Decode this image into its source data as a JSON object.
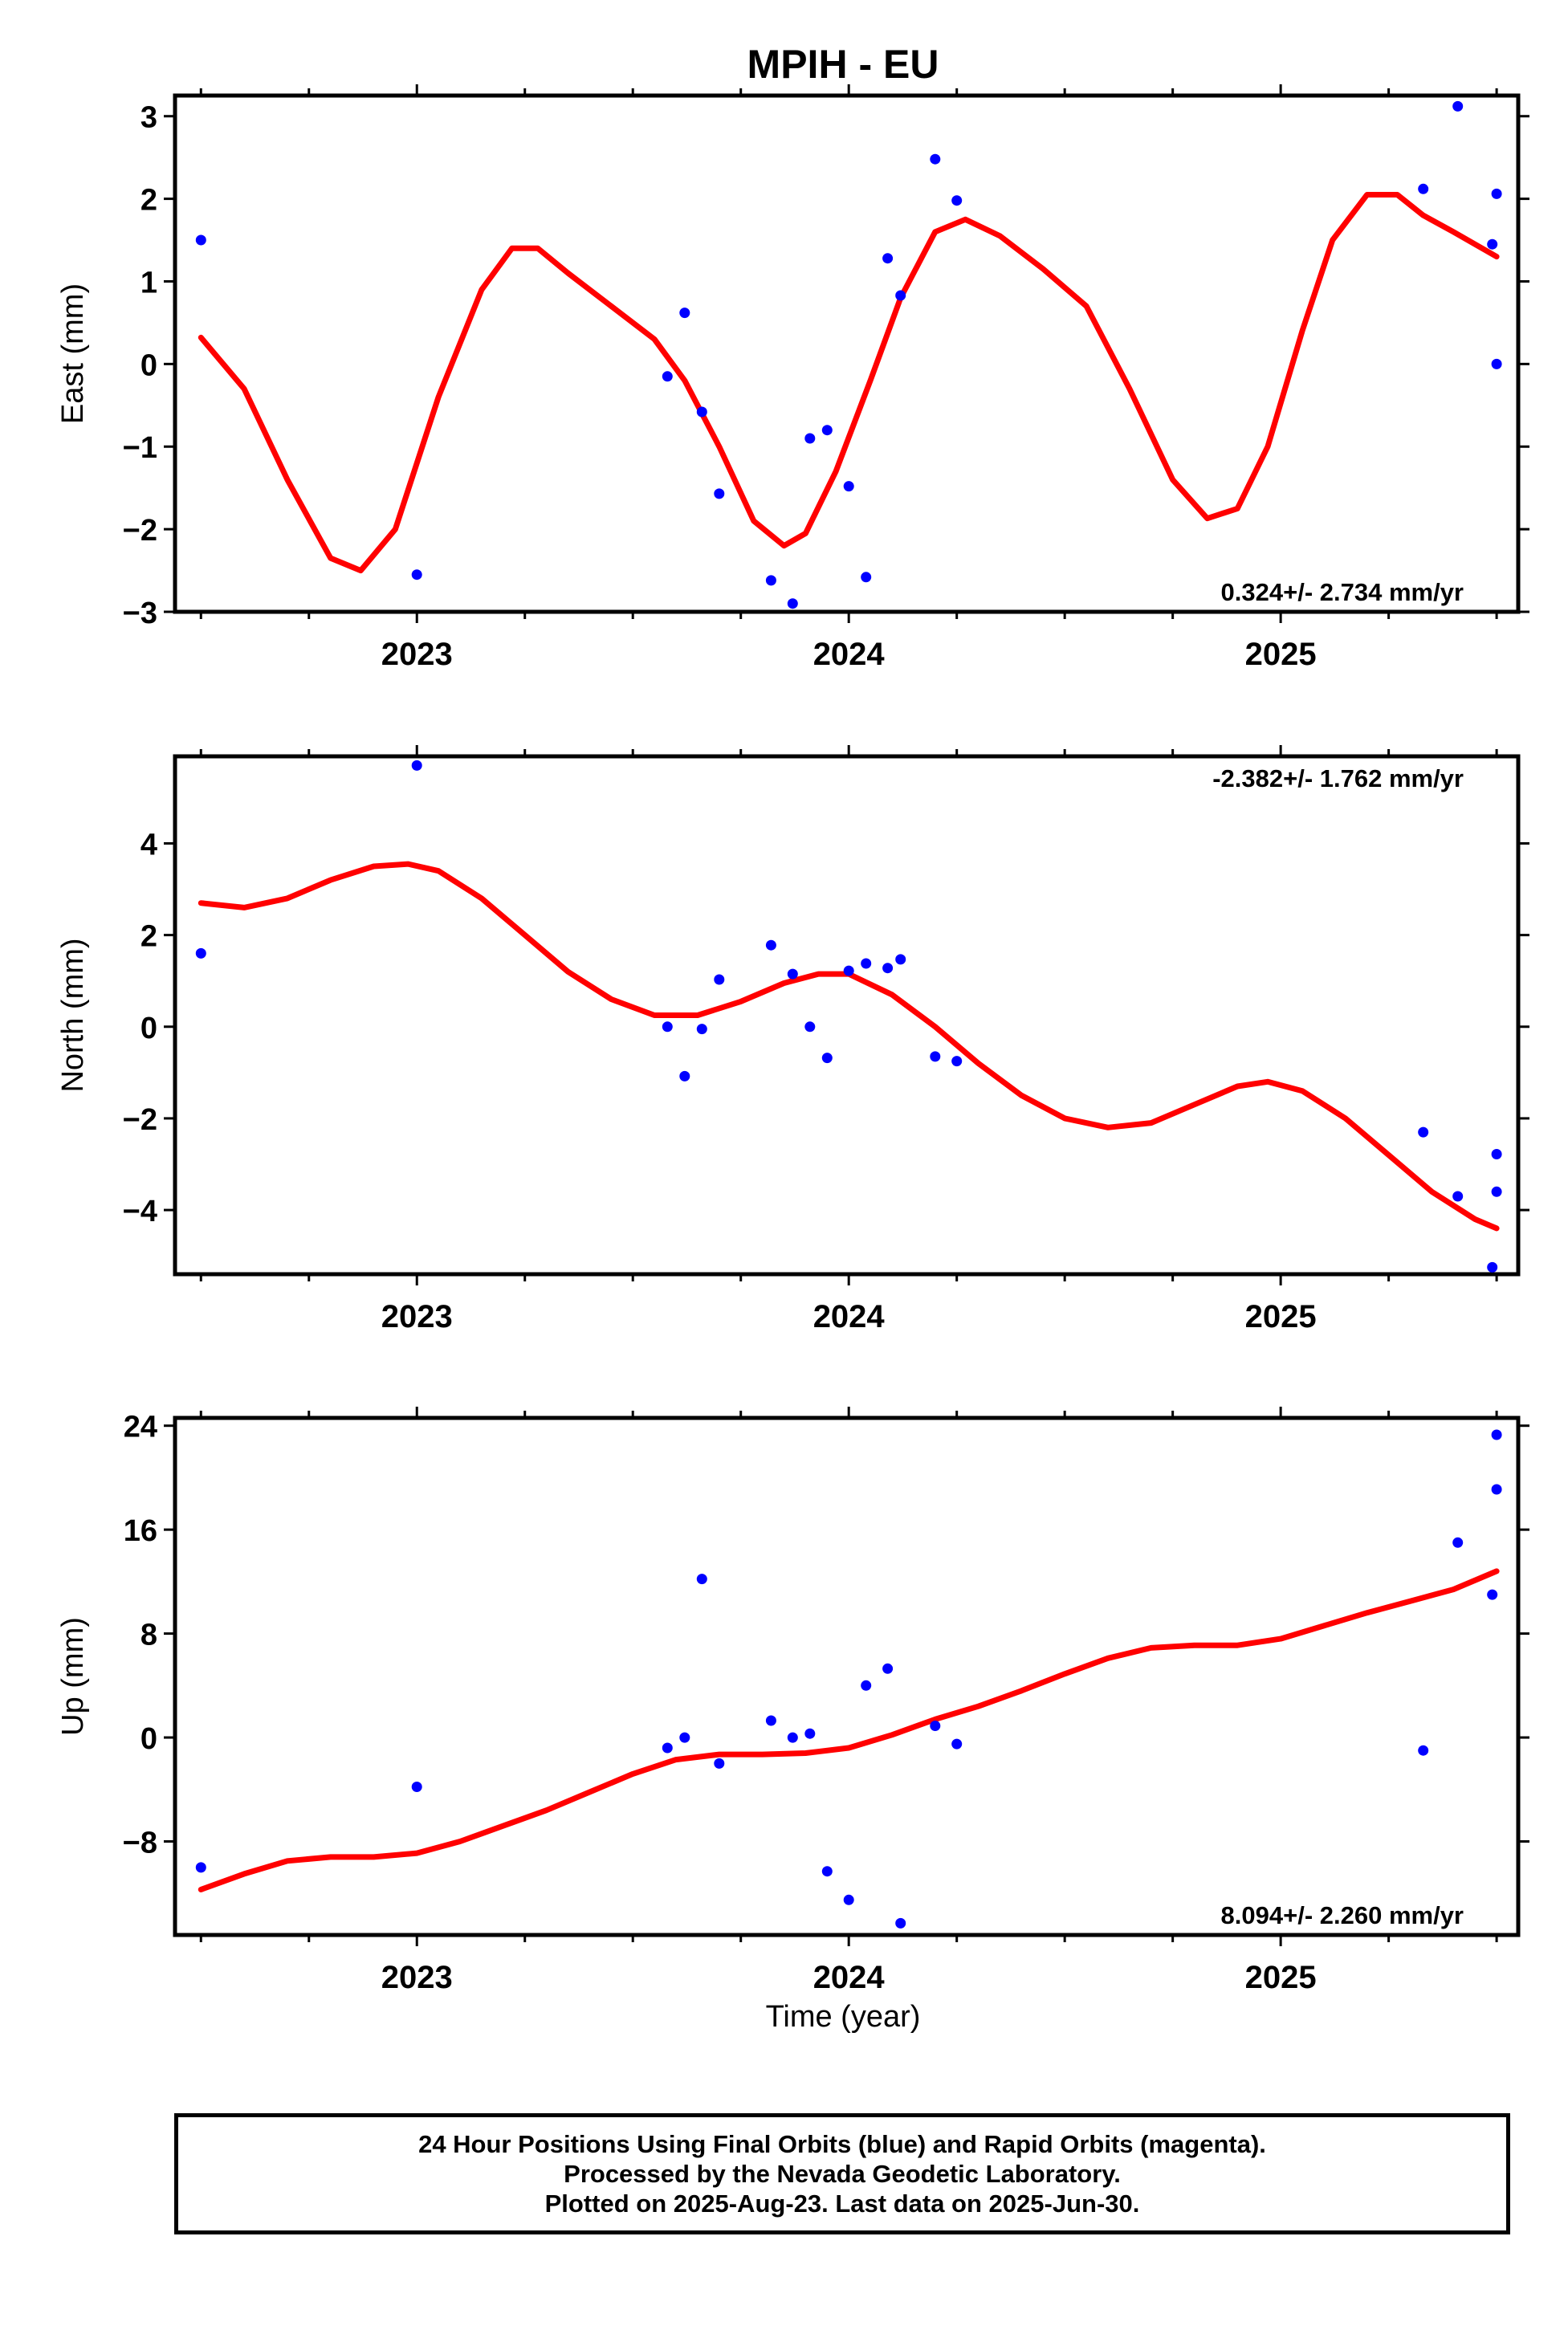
{
  "title": "MPIH - EU",
  "x_axis_label": "Time (year)",
  "colors": {
    "points": "#0000ff",
    "fit": "#ff0000",
    "frame": "#000000"
  },
  "chart_data": [
    {
      "type": "scatter",
      "ylabel": "East (mm)",
      "xlim": [
        2022.44,
        2025.55
      ],
      "ylim": [
        -3.0,
        3.25
      ],
      "yticks": [
        -3,
        -2,
        -1,
        0,
        1,
        2,
        3
      ],
      "ytick_labels": [
        "−3",
        "−2",
        "−1",
        "0",
        "1",
        "2",
        "3"
      ],
      "xticks": [
        2023,
        2024,
        2025
      ],
      "xtick_labels": [
        "2023",
        "2024",
        "2025"
      ],
      "rate_text": "0.324+/- 2.734 mm/yr",
      "rate_position": "bottom-right",
      "series": [
        {
          "kind": "points",
          "x": [
            2022.5,
            2023.0,
            2023.58,
            2023.62,
            2023.66,
            2023.7,
            2023.82,
            2023.87,
            2023.91,
            2023.95,
            2024.0,
            2024.04,
            2024.09,
            2024.12,
            2024.2,
            2024.25,
            2025.33,
            2025.41,
            2025.49,
            2025.5,
            2025.5
          ],
          "y": [
            1.5,
            -2.55,
            -0.15,
            0.62,
            -0.58,
            -1.57,
            -2.62,
            -2.9,
            -0.9,
            -0.8,
            -1.48,
            -2.58,
            1.28,
            0.83,
            2.48,
            1.98,
            2.12,
            3.12,
            1.45,
            0.0,
            2.06
          ]
        },
        {
          "kind": "fit",
          "x": [
            2022.5,
            2022.6,
            2022.7,
            2022.8,
            2022.87,
            2022.95,
            2023.05,
            2023.15,
            2023.22,
            2023.28,
            2023.35,
            2023.45,
            2023.55,
            2023.62,
            2023.7,
            2023.78,
            2023.85,
            2023.9,
            2023.97,
            2024.05,
            2024.12,
            2024.2,
            2024.27,
            2024.35,
            2024.45,
            2024.55,
            2024.65,
            2024.75,
            2024.83,
            2024.9,
            2024.97,
            2025.05,
            2025.12,
            2025.2,
            2025.27,
            2025.33,
            2025.4,
            2025.5
          ],
          "y": [
            0.32,
            -0.3,
            -1.4,
            -2.35,
            -2.5,
            -2.0,
            -0.4,
            0.9,
            1.4,
            1.4,
            1.1,
            0.7,
            0.3,
            -0.2,
            -1.0,
            -1.9,
            -2.2,
            -2.05,
            -1.3,
            -0.2,
            0.8,
            1.6,
            1.75,
            1.55,
            1.15,
            0.7,
            -0.3,
            -1.4,
            -1.87,
            -1.75,
            -1.0,
            0.4,
            1.5,
            2.05,
            2.05,
            1.8,
            1.6,
            1.3
          ]
        }
      ]
    },
    {
      "type": "scatter",
      "ylabel": "North (mm)",
      "xlim": [
        2022.44,
        2025.55
      ],
      "ylim": [
        -5.4,
        5.9
      ],
      "yticks": [
        -4,
        -2,
        0,
        2,
        4
      ],
      "ytick_labels": [
        "−4",
        "−2",
        "0",
        "2",
        "4"
      ],
      "xticks": [
        2023,
        2024,
        2025
      ],
      "xtick_labels": [
        "2023",
        "2024",
        "2025"
      ],
      "rate_text": "-2.382+/- 1.762 mm/yr",
      "rate_position": "top-right",
      "series": [
        {
          "kind": "points",
          "x": [
            2022.5,
            2023.0,
            2023.58,
            2023.62,
            2023.66,
            2023.7,
            2023.82,
            2023.87,
            2023.91,
            2023.95,
            2024.0,
            2024.04,
            2024.09,
            2024.12,
            2024.2,
            2024.25,
            2025.33,
            2025.41,
            2025.49,
            2025.5,
            2025.5
          ],
          "y": [
            1.6,
            5.7,
            0.0,
            -1.08,
            -0.05,
            1.03,
            1.78,
            1.15,
            0.0,
            -0.68,
            1.22,
            1.38,
            1.28,
            1.47,
            -0.65,
            -0.75,
            -2.3,
            -3.7,
            -5.25,
            -3.6,
            -2.78
          ]
        },
        {
          "kind": "fit",
          "x": [
            2022.5,
            2022.6,
            2022.7,
            2022.8,
            2022.9,
            2022.98,
            2023.05,
            2023.15,
            2023.25,
            2023.35,
            2023.45,
            2023.55,
            2023.65,
            2023.75,
            2023.85,
            2023.93,
            2024.0,
            2024.1,
            2024.2,
            2024.3,
            2024.4,
            2024.5,
            2024.6,
            2024.7,
            2024.8,
            2024.9,
            2024.97,
            2025.05,
            2025.15,
            2025.25,
            2025.35,
            2025.45,
            2025.5
          ],
          "y": [
            2.7,
            2.6,
            2.8,
            3.2,
            3.5,
            3.55,
            3.4,
            2.8,
            2.0,
            1.2,
            0.6,
            0.25,
            0.25,
            0.55,
            0.95,
            1.15,
            1.15,
            0.7,
            0.0,
            -0.8,
            -1.5,
            -2.0,
            -2.2,
            -2.1,
            -1.7,
            -1.3,
            -1.2,
            -1.4,
            -2.0,
            -2.8,
            -3.6,
            -4.2,
            -4.4
          ]
        }
      ]
    },
    {
      "type": "scatter",
      "ylabel": "Up (mm)",
      "xlim": [
        2022.44,
        2025.55
      ],
      "ylim": [
        -15.2,
        24.6
      ],
      "yticks": [
        -8,
        0,
        8,
        16,
        24
      ],
      "ytick_labels": [
        "−8",
        "0",
        "8",
        "16",
        "24"
      ],
      "xticks": [
        2023,
        2024,
        2025
      ],
      "xtick_labels": [
        "2023",
        "2024",
        "2025"
      ],
      "rate_text": "8.094+/- 2.260 mm/yr",
      "rate_position": "bottom-right",
      "series": [
        {
          "kind": "points",
          "x": [
            2022.5,
            2023.0,
            2023.58,
            2023.62,
            2023.66,
            2023.7,
            2023.82,
            2023.87,
            2023.91,
            2023.95,
            2024.0,
            2024.04,
            2024.09,
            2024.12,
            2024.2,
            2024.25,
            2025.33,
            2025.41,
            2025.49,
            2025.5,
            2025.5
          ],
          "y": [
            -10.0,
            -3.8,
            -0.8,
            0.0,
            12.2,
            -2.0,
            1.3,
            0.0,
            0.3,
            -10.3,
            -12.5,
            4.0,
            5.3,
            -14.3,
            0.9,
            -0.5,
            -1.0,
            15.0,
            11.0,
            19.1,
            23.3
          ]
        },
        {
          "kind": "fit",
          "x": [
            2022.5,
            2022.6,
            2022.7,
            2022.8,
            2022.9,
            2023.0,
            2023.1,
            2023.2,
            2023.3,
            2023.4,
            2023.5,
            2023.6,
            2023.7,
            2023.8,
            2023.9,
            2024.0,
            2024.1,
            2024.2,
            2024.3,
            2024.4,
            2024.5,
            2024.6,
            2024.7,
            2024.8,
            2024.9,
            2025.0,
            2025.1,
            2025.2,
            2025.3,
            2025.4,
            2025.5
          ],
          "y": [
            -11.7,
            -10.5,
            -9.5,
            -9.2,
            -9.2,
            -8.9,
            -8.0,
            -6.8,
            -5.6,
            -4.2,
            -2.8,
            -1.7,
            -1.3,
            -1.3,
            -1.2,
            -0.8,
            0.2,
            1.4,
            2.4,
            3.6,
            4.9,
            6.1,
            6.9,
            7.1,
            7.1,
            7.6,
            8.6,
            9.6,
            10.5,
            11.4,
            12.8
          ]
        }
      ]
    }
  ],
  "footer": {
    "line1": "24 Hour Positions Using Final Orbits (blue) and Rapid Orbits (magenta).",
    "line2": "Processed by the Nevada Geodetic Laboratory.",
    "line3": "Plotted on 2025-Aug-23. Last data on 2025-Jun-30."
  }
}
